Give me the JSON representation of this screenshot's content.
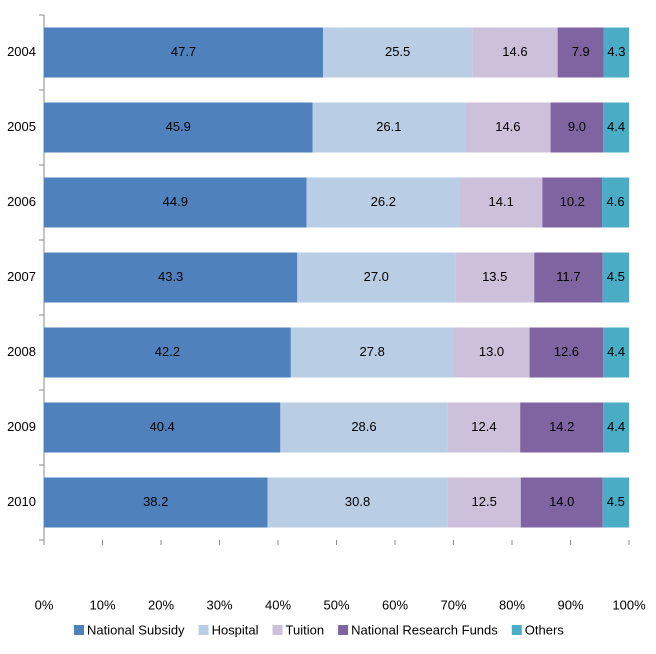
{
  "chart_data": {
    "type": "stacked_bar_horizontal",
    "categories": [
      "2004",
      "2005",
      "2006",
      "2007",
      "2008",
      "2009",
      "2010"
    ],
    "series": [
      {
        "name": "National Subsidy",
        "color": "#4f81bd",
        "values": [
          47.7,
          45.9,
          44.9,
          43.3,
          42.2,
          40.4,
          38.2
        ],
        "value_labels": [
          "47.7",
          "45.9",
          "44.9",
          "43.3",
          "42.2",
          "40.4",
          "38.2"
        ]
      },
      {
        "name": "Hospital",
        "color": "#b9cde5",
        "values": [
          25.5,
          26.1,
          26.2,
          27.0,
          27.8,
          28.6,
          30.8
        ],
        "value_labels": [
          "25.5",
          "26.1",
          "26.2",
          "27.0",
          "27.8",
          "28.6",
          "30.8"
        ]
      },
      {
        "name": "Tuition",
        "color": "#ccc0da",
        "values": [
          14.6,
          14.6,
          14.1,
          13.5,
          13.0,
          12.4,
          12.5
        ],
        "value_labels": [
          "14.6",
          "14.6",
          "14.1",
          "13.5",
          "13.0",
          "12.4",
          "12.5"
        ]
      },
      {
        "name": "National Research Funds",
        "color": "#8064a2",
        "values": [
          7.9,
          9.0,
          10.2,
          11.7,
          12.6,
          14.2,
          14.0
        ],
        "value_labels": [
          "7.9",
          "9.0",
          "10.2",
          "11.7",
          "12.6",
          "14.2",
          "14.0"
        ]
      },
      {
        "name": "Others",
        "color": "#4bacc6",
        "values": [
          4.3,
          4.4,
          4.6,
          4.5,
          4.4,
          4.4,
          4.5
        ],
        "value_labels": [
          "4.3",
          "4.4",
          "4.6",
          "4.5",
          "4.4",
          "4.4",
          "4.5"
        ]
      }
    ],
    "xlim": [
      0,
      100
    ],
    "xticks": [
      {
        "value": 0,
        "label": "0%"
      },
      {
        "value": 10,
        "label": "10%"
      },
      {
        "value": 20,
        "label": "20%"
      },
      {
        "value": 30,
        "label": "30%"
      },
      {
        "value": 40,
        "label": "40%"
      },
      {
        "value": 50,
        "label": "50%"
      },
      {
        "value": 60,
        "label": "60%"
      },
      {
        "value": 70,
        "label": "70%"
      },
      {
        "value": 80,
        "label": "80%"
      },
      {
        "value": 90,
        "label": "90%"
      },
      {
        "value": 100,
        "label": "100%"
      }
    ],
    "legend": "bottom",
    "grid": false
  }
}
